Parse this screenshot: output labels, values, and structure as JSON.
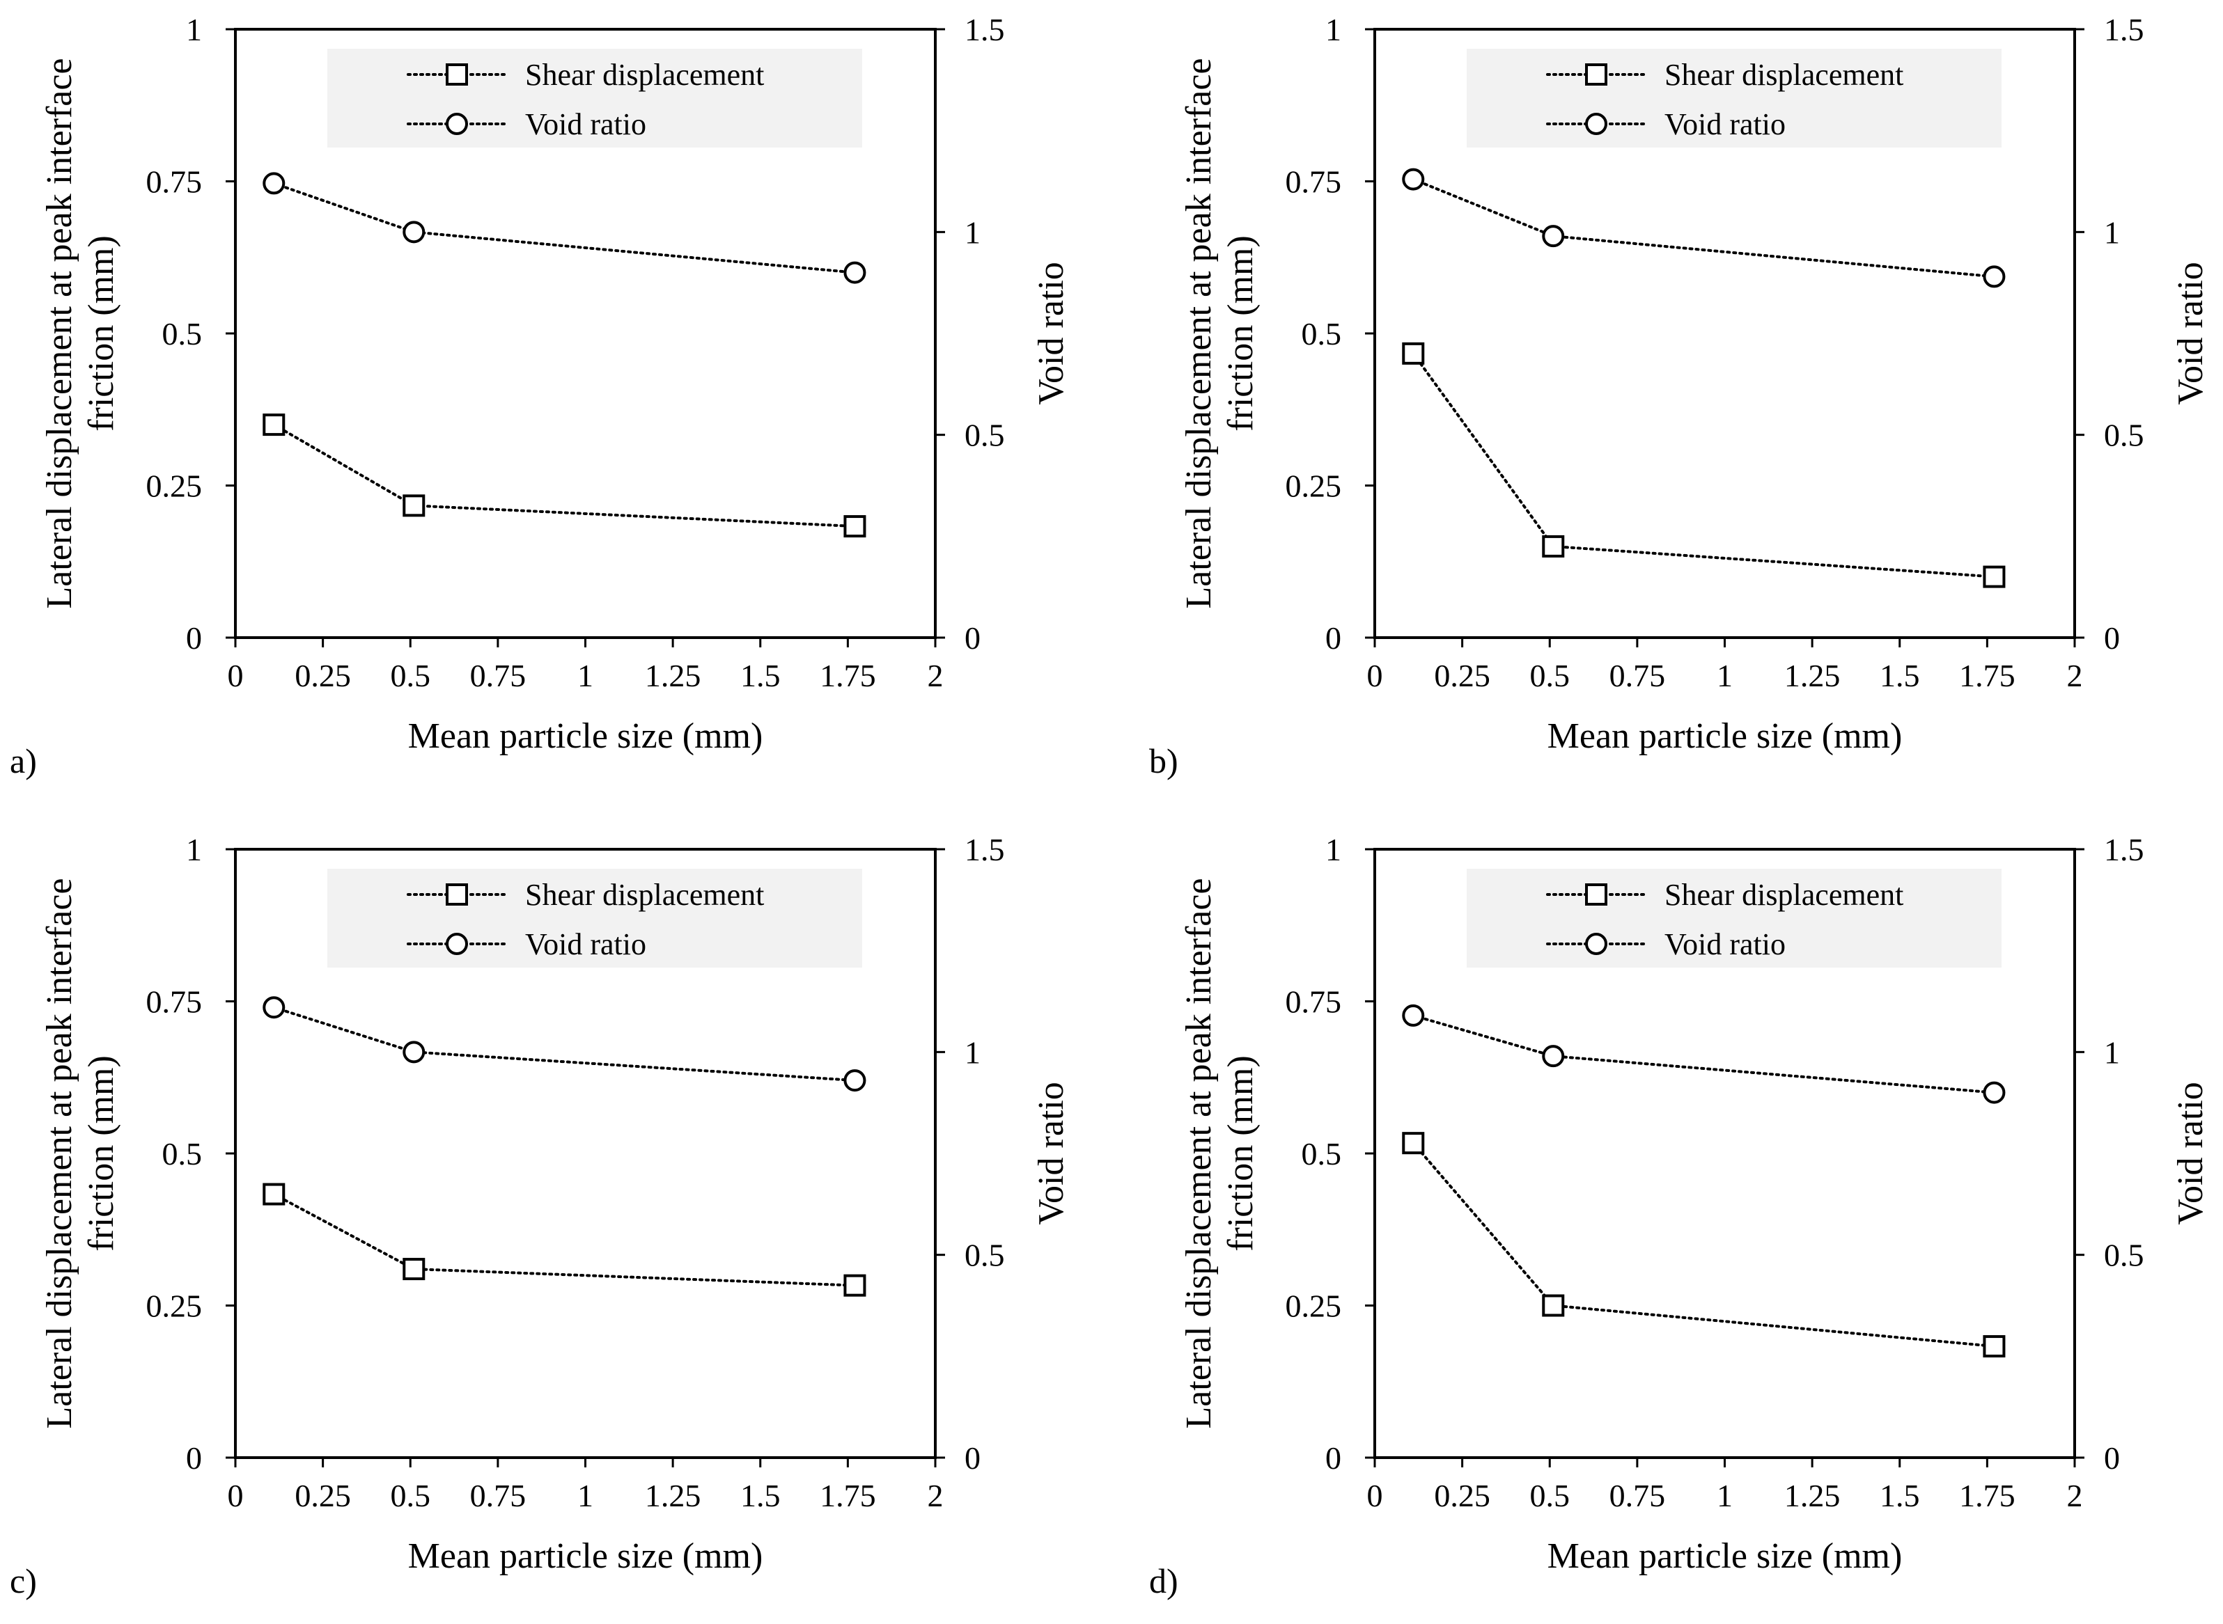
{
  "figure": {
    "panels": [
      "a)",
      "b)",
      "c)",
      "d)"
    ]
  },
  "chart_data": [
    {
      "panel_label": "a)",
      "type": "line",
      "title": "",
      "xlabel": "Mean particle size (mm)",
      "ylabel_lines": [
        "Lateral displacement at peak interface",
        "friction (mm)"
      ],
      "y2label": "Void ratio",
      "xlim": [
        0,
        2
      ],
      "ylim": [
        0,
        1
      ],
      "y2lim": [
        0,
        1.5
      ],
      "xticks": [
        "0",
        "0.25",
        "0.5",
        "0.75",
        "1",
        "1.25",
        "1.5",
        "1.75",
        "2"
      ],
      "yticks": [
        "0",
        "0.25",
        "0.5",
        "0.75",
        "1"
      ],
      "y2ticks": [
        "0",
        "0.5",
        "1",
        "1.5"
      ],
      "legend_position": "top-center",
      "series": [
        {
          "name": "Shear displacement",
          "axis": "left",
          "marker": "square",
          "x": [
            0.11,
            0.51,
            1.77
          ],
          "y": [
            0.35,
            0.217,
            0.183
          ]
        },
        {
          "name": "Void ratio",
          "axis": "right",
          "marker": "circle",
          "x": [
            0.11,
            0.51,
            1.77
          ],
          "y": [
            1.12,
            1.0,
            0.9
          ]
        }
      ]
    },
    {
      "panel_label": "b)",
      "type": "line",
      "title": "",
      "xlabel": "Mean particle size (mm)",
      "ylabel_lines": [
        "Lateral displacement at peak interface",
        "friction (mm)"
      ],
      "y2label": "Void ratio",
      "xlim": [
        0,
        2
      ],
      "ylim": [
        0,
        1
      ],
      "y2lim": [
        0,
        1.5
      ],
      "xticks": [
        "0",
        "0.25",
        "0.5",
        "0.75",
        "1",
        "1.25",
        "1.5",
        "1.75",
        "2"
      ],
      "yticks": [
        "0",
        "0.25",
        "0.5",
        "0.75",
        "1"
      ],
      "y2ticks": [
        "0",
        "0.5",
        "1",
        "1.5"
      ],
      "legend_position": "top-center",
      "series": [
        {
          "name": "Shear displacement",
          "axis": "left",
          "marker": "square",
          "x": [
            0.11,
            0.51,
            1.77
          ],
          "y": [
            0.467,
            0.15,
            0.1
          ]
        },
        {
          "name": "Void ratio",
          "axis": "right",
          "marker": "circle",
          "x": [
            0.11,
            0.51,
            1.77
          ],
          "y": [
            1.13,
            0.99,
            0.89
          ]
        }
      ]
    },
    {
      "panel_label": "c)",
      "type": "line",
      "title": "",
      "xlabel": "Mean particle size (mm)",
      "ylabel_lines": [
        "Lateral displacement at peak interface",
        "friction (mm)"
      ],
      "y2label": "Void ratio",
      "xlim": [
        0,
        2
      ],
      "ylim": [
        0,
        1
      ],
      "y2lim": [
        0,
        1.5
      ],
      "xticks": [
        "0",
        "0.25",
        "0.5",
        "0.75",
        "1",
        "1.25",
        "1.5",
        "1.75",
        "2"
      ],
      "yticks": [
        "0",
        "0.25",
        "0.5",
        "0.75",
        "1"
      ],
      "y2ticks": [
        "0",
        "0.5",
        "1",
        "1.5"
      ],
      "legend_position": "top-center",
      "series": [
        {
          "name": "Shear displacement",
          "axis": "left",
          "marker": "square",
          "x": [
            0.11,
            0.51,
            1.77
          ],
          "y": [
            0.433,
            0.31,
            0.283
          ]
        },
        {
          "name": "Void ratio",
          "axis": "right",
          "marker": "circle",
          "x": [
            0.11,
            0.51,
            1.77
          ],
          "y": [
            1.11,
            1.0,
            0.93
          ]
        }
      ]
    },
    {
      "panel_label": "d)",
      "type": "line",
      "title": "",
      "xlabel": "Mean particle size (mm)",
      "ylabel_lines": [
        "Lateral displacement at peak interface",
        "friction (mm)"
      ],
      "y2label": "Void ratio",
      "xlim": [
        0,
        2
      ],
      "ylim": [
        0,
        1
      ],
      "y2lim": [
        0,
        1.5
      ],
      "xticks": [
        "0",
        "0.25",
        "0.5",
        "0.75",
        "1",
        "1.25",
        "1.5",
        "1.75",
        "2"
      ],
      "yticks": [
        "0",
        "0.25",
        "0.5",
        "0.75",
        "1"
      ],
      "y2ticks": [
        "0",
        "0.5",
        "1",
        "1.5"
      ],
      "legend_position": "top-center",
      "series": [
        {
          "name": "Shear displacement",
          "axis": "left",
          "marker": "square",
          "x": [
            0.11,
            0.51,
            1.77
          ],
          "y": [
            0.517,
            0.25,
            0.183
          ]
        },
        {
          "name": "Void ratio",
          "axis": "right",
          "marker": "circle",
          "x": [
            0.11,
            0.51,
            1.77
          ],
          "y": [
            1.09,
            0.99,
            0.9
          ]
        }
      ]
    }
  ]
}
